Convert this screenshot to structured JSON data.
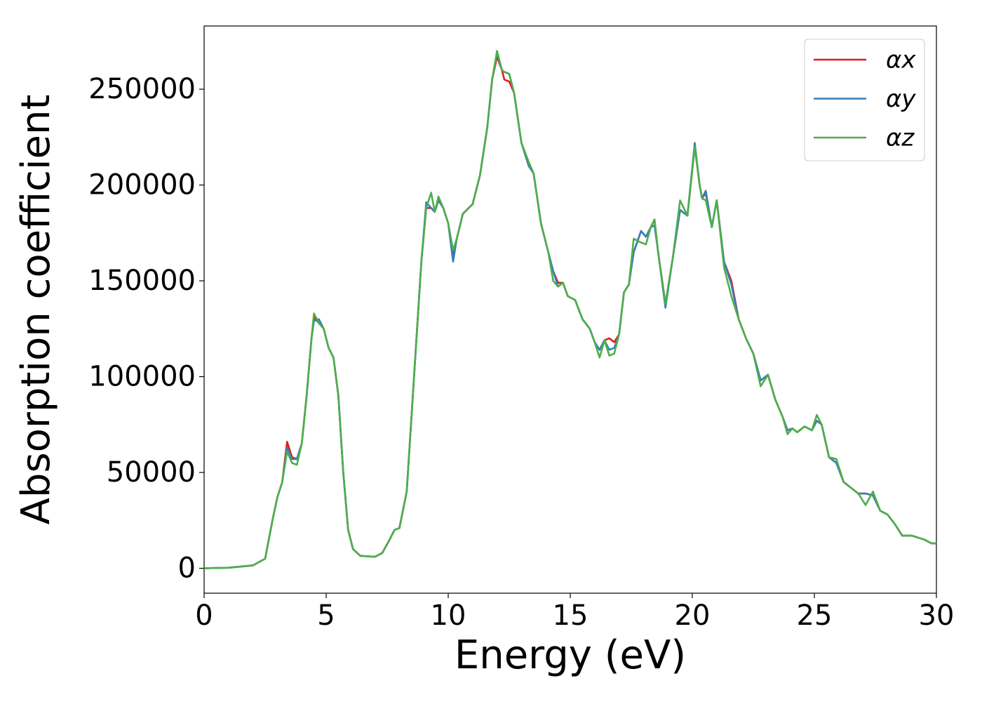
{
  "chart_data": {
    "type": "line",
    "x_label": "Energy (eV)",
    "y_label": "Absorption coefficient",
    "xlim": [
      0,
      30
    ],
    "xticks": [
      0,
      5,
      10,
      15,
      20,
      25,
      30
    ],
    "ylim": [
      -13000,
      283000
    ],
    "yticks": [
      0,
      50000,
      100000,
      150000,
      200000,
      250000
    ],
    "legend": "upper right",
    "grid": false,
    "x": [
      0,
      1,
      2,
      2.5,
      2.8,
      3,
      3.2,
      3.4,
      3.6,
      3.8,
      4,
      4.2,
      4.4,
      4.5,
      4.7,
      4.9,
      5.1,
      5.3,
      5.5,
      5.7,
      5.9,
      6.1,
      6.4,
      7,
      7.3,
      7.6,
      7.8,
      8,
      8.3,
      8.6,
      8.9,
      9.1,
      9.3,
      9.45,
      9.6,
      9.8,
      10,
      10.2,
      10.35,
      10.6,
      11,
      11.3,
      11.6,
      11.8,
      12,
      12.2,
      12.3,
      12.5,
      12.7,
      13,
      13.3,
      13.5,
      13.8,
      14.1,
      14.3,
      14.5,
      14.7,
      14.9,
      15.2,
      15.5,
      15.8,
      16,
      16.2,
      16.4,
      16.6,
      16.8,
      17,
      17.2,
      17.4,
      17.6,
      17.9,
      18.1,
      18.3,
      18.45,
      18.6,
      18.9,
      19.2,
      19.5,
      19.8,
      20.1,
      20.3,
      20.4,
      20.55,
      20.8,
      21,
      21.3,
      21.6,
      21.9,
      22.2,
      22.5,
      22.8,
      23.1,
      23.4,
      23.7,
      23.9,
      24.1,
      24.3,
      24.6,
      24.9,
      25.1,
      25.3,
      25.6,
      25.9,
      26.2,
      26.5,
      26.8,
      27.1,
      27.4,
      27.7,
      28,
      28.3,
      28.6,
      29,
      29.5,
      29.8,
      30
    ],
    "series": [
      {
        "name": "αx",
        "color": "#e41a1c",
        "values": [
          0,
          300,
          1500,
          5000,
          25000,
          37000,
          45000,
          66000,
          58000,
          57000,
          65000,
          90000,
          120000,
          131000,
          128000,
          125000,
          115000,
          110000,
          90000,
          50000,
          20000,
          10000,
          6500,
          6000,
          8000,
          15000,
          20000,
          21000,
          40000,
          100000,
          160000,
          188000,
          188000,
          186000,
          192000,
          188000,
          180000,
          163000,
          172000,
          185000,
          190000,
          205000,
          230000,
          255000,
          267000,
          260000,
          255000,
          254000,
          248000,
          222000,
          210000,
          206000,
          180000,
          165000,
          155000,
          149000,
          149000,
          142000,
          140000,
          130000,
          125000,
          118000,
          114000,
          119000,
          120000,
          118000,
          122000,
          144000,
          148000,
          165000,
          176000,
          173000,
          178000,
          182000,
          165000,
          138000,
          162000,
          187000,
          184000,
          220000,
          200000,
          193000,
          196000,
          178000,
          192000,
          160000,
          150000,
          130000,
          120000,
          112000,
          98000,
          101000,
          88000,
          79000,
          72000,
          73000,
          71000,
          74000,
          72000,
          77000,
          75000,
          58000,
          55000,
          45000,
          42000,
          39000,
          39000,
          38000,
          30000,
          28000,
          23000,
          17000,
          17000,
          15000,
          13000,
          13000
        ]
      },
      {
        "name": "αy",
        "color": "#377eb8",
        "values": [
          0,
          300,
          1500,
          5000,
          25000,
          37000,
          45000,
          63000,
          57000,
          57000,
          65000,
          90000,
          120000,
          129000,
          130000,
          125000,
          115000,
          110000,
          90000,
          50000,
          20000,
          10000,
          6500,
          6000,
          8000,
          15000,
          20000,
          21000,
          40000,
          100000,
          160000,
          191000,
          188000,
          186000,
          192000,
          188000,
          180000,
          160000,
          172000,
          185000,
          190000,
          205000,
          230000,
          255000,
          269000,
          260000,
          259000,
          258000,
          248000,
          222000,
          210000,
          206000,
          180000,
          165000,
          155000,
          147000,
          149000,
          142000,
          140000,
          130000,
          125000,
          118000,
          114000,
          119000,
          114000,
          115000,
          122000,
          144000,
          148000,
          165000,
          176000,
          173000,
          178000,
          179000,
          165000,
          136000,
          162000,
          187000,
          184000,
          222000,
          200000,
          193000,
          197000,
          178000,
          192000,
          160000,
          148000,
          130000,
          120000,
          112000,
          98000,
          101000,
          88000,
          79000,
          72000,
          73000,
          71000,
          74000,
          72000,
          77000,
          75000,
          58000,
          55000,
          45000,
          42000,
          39000,
          39000,
          38000,
          30000,
          28000,
          23000,
          17000,
          17000,
          15000,
          13000,
          13000
        ]
      },
      {
        "name": "αz",
        "color": "#4daf4a",
        "values": [
          0,
          300,
          1500,
          5000,
          25000,
          37000,
          45000,
          61000,
          55000,
          54000,
          65000,
          90000,
          120000,
          133000,
          128000,
          125000,
          115000,
          110000,
          90000,
          50000,
          20000,
          10000,
          6500,
          6000,
          8000,
          15000,
          20000,
          21000,
          40000,
          100000,
          160000,
          188000,
          196000,
          186000,
          194000,
          188000,
          180000,
          166000,
          172000,
          185000,
          190000,
          205000,
          230000,
          255000,
          270000,
          260000,
          259000,
          258000,
          248000,
          222000,
          212000,
          206000,
          180000,
          165000,
          150000,
          147000,
          149000,
          142000,
          140000,
          130000,
          125000,
          118000,
          110000,
          119000,
          111000,
          112000,
          122000,
          144000,
          148000,
          172000,
          170000,
          169000,
          178000,
          182000,
          165000,
          138000,
          162000,
          192000,
          184000,
          220000,
          200000,
          193000,
          192000,
          178000,
          192000,
          157000,
          142000,
          130000,
          120000,
          112000,
          95000,
          101000,
          88000,
          79000,
          70000,
          73000,
          71000,
          74000,
          72000,
          80000,
          75000,
          58000,
          57000,
          45000,
          42000,
          39000,
          33000,
          40000,
          30000,
          28000,
          23000,
          17000,
          17000,
          15000,
          13000,
          13000
        ]
      }
    ]
  }
}
